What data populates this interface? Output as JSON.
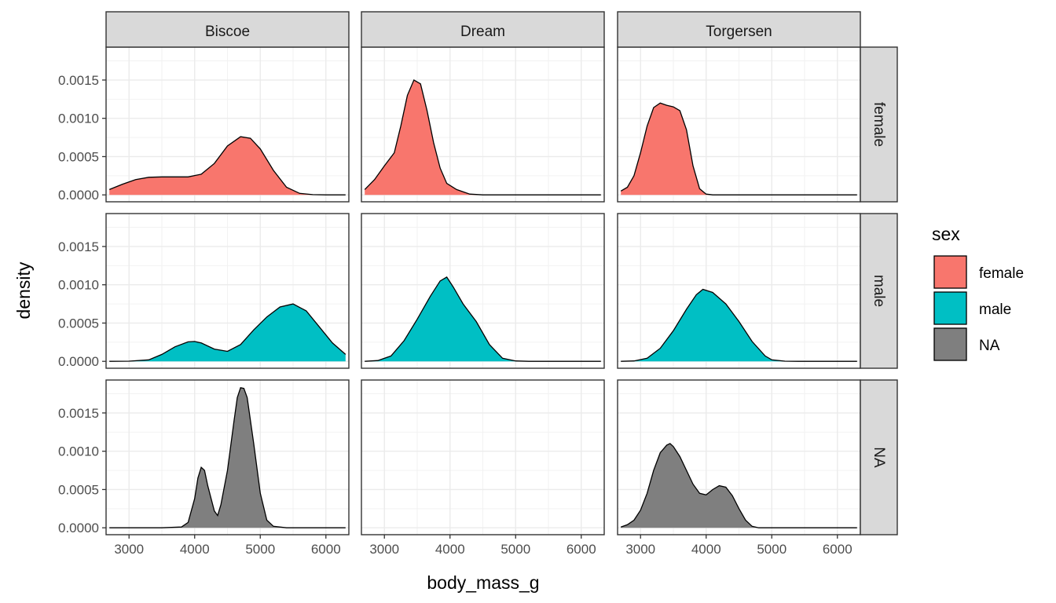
{
  "chart_data": {
    "type": "area",
    "xlabel": "body_mass_g",
    "ylabel": "density",
    "x_ticks": [
      3000,
      4000,
      5000,
      6000
    ],
    "y_ticks": [
      "0.0000",
      "0.0005",
      "0.0010",
      "0.0015"
    ],
    "y_tick_values": [
      0,
      0.0005,
      0.001,
      0.0015
    ],
    "xlim": [
      2650,
      6350
    ],
    "ylim": [
      -9e-05,
      0.00193
    ],
    "facet_columns": [
      "Biscoe",
      "Dream",
      "Torgersen"
    ],
    "facet_rows": [
      "female",
      "male",
      "NA"
    ],
    "legend": {
      "title": "sex",
      "position": "right",
      "entries": [
        {
          "label": "female",
          "color": "#F8766D"
        },
        {
          "label": "male",
          "color": "#00BFC4"
        },
        {
          "label": "NA",
          "color": "#7F7F7F"
        }
      ]
    },
    "grid": true,
    "panels": [
      {
        "column": "Biscoe",
        "row": "female",
        "color": "#F8766D",
        "x": [
          2700,
          2900,
          3100,
          3300,
          3500,
          3700,
          3900,
          4100,
          4300,
          4500,
          4700,
          4850,
          5000,
          5200,
          5400,
          5600,
          5800,
          6000,
          6300
        ],
        "y": [
          7e-05,
          0.00014,
          0.0002,
          0.00023,
          0.000235,
          0.000235,
          0.000235,
          0.00027,
          0.00041,
          0.00064,
          0.00076,
          0.00074,
          0.0006,
          0.00032,
          0.0001,
          2e-05,
          3e-06,
          0,
          0
        ]
      },
      {
        "column": "Dream",
        "row": "female",
        "color": "#F8766D",
        "x": [
          2700,
          2850,
          3000,
          3150,
          3250,
          3350,
          3450,
          3550,
          3650,
          3750,
          3850,
          3950,
          4100,
          4300,
          4500,
          6300
        ],
        "y": [
          7e-05,
          0.0002,
          0.00038,
          0.00055,
          0.0009,
          0.0013,
          0.0015,
          0.00145,
          0.0011,
          0.00068,
          0.00035,
          0.00015,
          7e-05,
          1e-05,
          0,
          0
        ]
      },
      {
        "column": "Torgersen",
        "row": "female",
        "color": "#F8766D",
        "x": [
          2700,
          2800,
          2900,
          3000,
          3100,
          3200,
          3300,
          3400,
          3500,
          3600,
          3700,
          3800,
          3900,
          4000,
          4100,
          6300
        ],
        "y": [
          5e-05,
          0.0001,
          0.00025,
          0.00055,
          0.0009,
          0.00114,
          0.0012,
          0.00117,
          0.00115,
          0.0011,
          0.00085,
          0.00038,
          8e-05,
          1e-05,
          0,
          0
        ]
      },
      {
        "column": "Biscoe",
        "row": "male",
        "color": "#00BFC4",
        "x": [
          2700,
          3000,
          3300,
          3500,
          3700,
          3900,
          4000,
          4100,
          4300,
          4500,
          4700,
          4900,
          5100,
          5300,
          5500,
          5700,
          5900,
          6100,
          6300
        ],
        "y": [
          0,
          2e-06,
          2e-05,
          9e-05,
          0.00019,
          0.000255,
          0.00026,
          0.00024,
          0.00016,
          0.00013,
          0.00022,
          0.00041,
          0.00058,
          0.00071,
          0.00075,
          0.00066,
          0.00045,
          0.00024,
          9e-05
        ]
      },
      {
        "column": "Dream",
        "row": "male",
        "color": "#00BFC4",
        "x": [
          2700,
          2900,
          3100,
          3300,
          3500,
          3700,
          3850,
          3950,
          4050,
          4200,
          4400,
          4600,
          4800,
          5000,
          5200,
          6300
        ],
        "y": [
          0,
          1e-05,
          7e-05,
          0.00027,
          0.00055,
          0.00085,
          0.00105,
          0.0011,
          0.00097,
          0.00075,
          0.00052,
          0.00022,
          4e-05,
          5e-06,
          0,
          0
        ]
      },
      {
        "column": "Torgersen",
        "row": "male",
        "color": "#00BFC4",
        "x": [
          2700,
          2900,
          3100,
          3300,
          3500,
          3700,
          3850,
          3950,
          4100,
          4300,
          4500,
          4700,
          4900,
          5000,
          5200,
          5400,
          6300
        ],
        "y": [
          0,
          5e-06,
          4e-05,
          0.00017,
          0.0004,
          0.00068,
          0.00087,
          0.00094,
          0.0009,
          0.00075,
          0.00052,
          0.00026,
          7e-05,
          2e-05,
          2e-06,
          0,
          0
        ]
      },
      {
        "column": "Biscoe",
        "row": "NA",
        "color": "#7F7F7F",
        "x": [
          2700,
          3500,
          3800,
          3900,
          4000,
          4050,
          4100,
          4150,
          4200,
          4300,
          4350,
          4400,
          4500,
          4600,
          4650,
          4700,
          4750,
          4800,
          4900,
          5000,
          5100,
          5200,
          5400,
          6300
        ],
        "y": [
          0,
          0,
          1e-05,
          7e-05,
          0.00038,
          0.00065,
          0.00079,
          0.00075,
          0.00055,
          0.00022,
          0.00016,
          0.0003,
          0.00075,
          0.0014,
          0.0017,
          0.00183,
          0.00182,
          0.0017,
          0.0011,
          0.00045,
          0.0001,
          2e-05,
          0,
          0
        ]
      },
      {
        "column": "Dream",
        "row": "NA",
        "color": "#7F7F7F",
        "x": [],
        "y": []
      },
      {
        "column": "Torgersen",
        "row": "NA",
        "color": "#7F7F7F",
        "x": [
          2700,
          2800,
          2900,
          3000,
          3100,
          3200,
          3300,
          3400,
          3450,
          3500,
          3600,
          3700,
          3800,
          3900,
          4000,
          4100,
          4200,
          4300,
          4400,
          4500,
          4600,
          4700,
          4800,
          6300
        ],
        "y": [
          1e-05,
          4e-05,
          0.0001,
          0.00023,
          0.00045,
          0.00075,
          0.00098,
          0.00108,
          0.0011,
          0.00106,
          0.00093,
          0.00075,
          0.00057,
          0.00045,
          0.00043,
          0.0005,
          0.00055,
          0.00053,
          0.00042,
          0.00025,
          0.0001,
          2e-05,
          0,
          0
        ]
      }
    ]
  }
}
